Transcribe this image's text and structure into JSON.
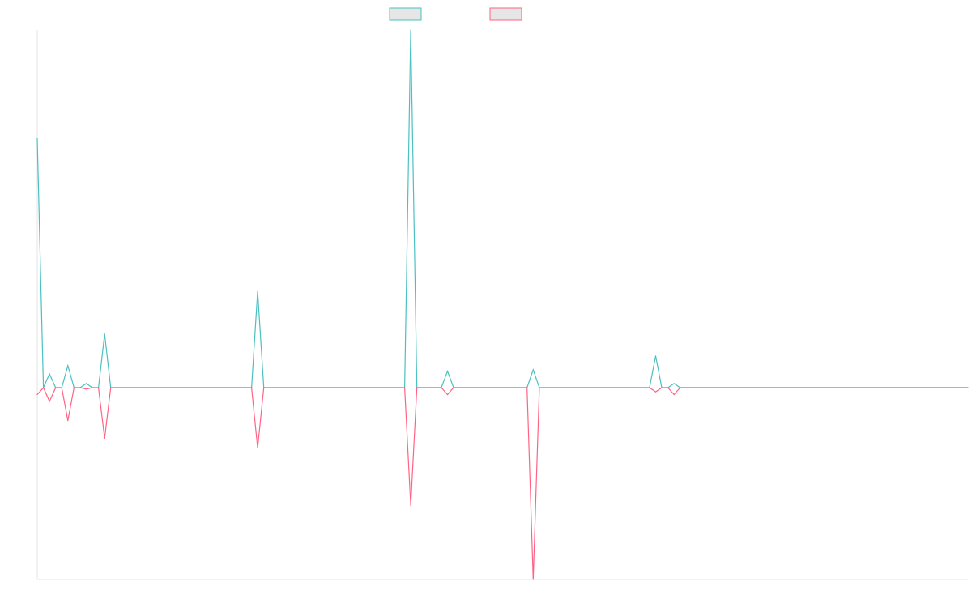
{
  "colors": {
    "series_a": "#4bc0c0",
    "series_b": "#ff6384",
    "axis": "#e6e6e6",
    "legend_fill": "#e6e6e6",
    "background": "#ffffff"
  },
  "chart_data": {
    "type": "line",
    "title": "",
    "xlabel": "",
    "ylabel": "",
    "grid": false,
    "legend_position": "top-center",
    "show_tick_labels": false,
    "x_range": [
      0,
      152
    ],
    "ylim": [
      -140,
      260
    ],
    "baseline": 0,
    "series": [
      {
        "name": "",
        "color_key": "series_a",
        "direction": "up",
        "points": [
          [
            0,
            181
          ],
          [
            1,
            0
          ],
          [
            2,
            10
          ],
          [
            3,
            0
          ],
          [
            4,
            0
          ],
          [
            5,
            16
          ],
          [
            6,
            0
          ],
          [
            7,
            0
          ],
          [
            8,
            3
          ],
          [
            9,
            0
          ],
          [
            10,
            0
          ],
          [
            11,
            39
          ],
          [
            12,
            0
          ],
          [
            35,
            0
          ],
          [
            36,
            70
          ],
          [
            37,
            0
          ],
          [
            60,
            0
          ],
          [
            61,
            260
          ],
          [
            62,
            0
          ],
          [
            66,
            0
          ],
          [
            67,
            12
          ],
          [
            68,
            0
          ],
          [
            80,
            0
          ],
          [
            81,
            13
          ],
          [
            82,
            0
          ],
          [
            100,
            0
          ],
          [
            101,
            23
          ],
          [
            102,
            0
          ],
          [
            103,
            0
          ],
          [
            104,
            3
          ],
          [
            105,
            0
          ],
          [
            152,
            0
          ]
        ]
      },
      {
        "name": "",
        "color_key": "series_b",
        "direction": "down",
        "points": [
          [
            0,
            -5
          ],
          [
            1,
            0
          ],
          [
            2,
            -10
          ],
          [
            3,
            0
          ],
          [
            4,
            0
          ],
          [
            5,
            -24
          ],
          [
            6,
            0
          ],
          [
            7,
            0
          ],
          [
            8,
            -1
          ],
          [
            9,
            0
          ],
          [
            10,
            0
          ],
          [
            11,
            -37
          ],
          [
            12,
            0
          ],
          [
            35,
            0
          ],
          [
            36,
            -44
          ],
          [
            37,
            0
          ],
          [
            60,
            0
          ],
          [
            61,
            -86
          ],
          [
            62,
            0
          ],
          [
            66,
            0
          ],
          [
            67,
            -5
          ],
          [
            68,
            0
          ],
          [
            80,
            0
          ],
          [
            81,
            -140
          ],
          [
            82,
            0
          ],
          [
            100,
            0
          ],
          [
            101,
            -3
          ],
          [
            102,
            0
          ],
          [
            103,
            0
          ],
          [
            104,
            -5
          ],
          [
            105,
            0
          ],
          [
            152,
            0
          ]
        ]
      }
    ]
  }
}
